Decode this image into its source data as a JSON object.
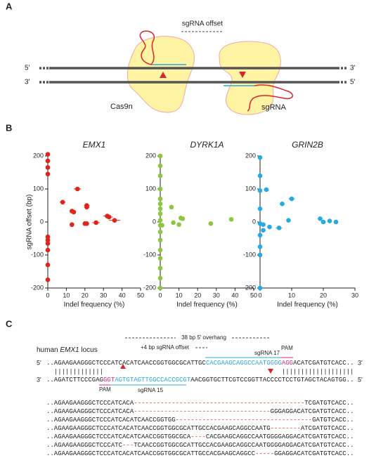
{
  "panel_labels": [
    "A",
    "B",
    "C"
  ],
  "panel_a": {
    "offset_label": "sgRNA offset",
    "top_left": "5'",
    "top_right": "3'",
    "bottom_left": "3'",
    "bottom_right": "5'",
    "cas9_label": "Cas9n",
    "sgrna_label": "sgRNA"
  },
  "chart_data": [
    {
      "type": "scatter",
      "title": "EMX1",
      "xlabel": "Indel frequency (%)",
      "ylabel": "sgRNA offset (bp)",
      "color": "#e2231a",
      "x": [
        0,
        0,
        0,
        0,
        0,
        0,
        0,
        0,
        0,
        0,
        8,
        16,
        13,
        14,
        13,
        21,
        21,
        20,
        21,
        26,
        32,
        33,
        36
      ],
      "values": [
        205,
        185,
        165,
        145,
        -45,
        -55,
        -65,
        -85,
        -130,
        -175,
        60,
        100,
        33,
        30,
        -8,
        45,
        50,
        -5,
        -5,
        -2,
        18,
        15,
        5
      ],
      "xerr": [
        0,
        0,
        0,
        0,
        0,
        0,
        0,
        0,
        0,
        0,
        1.5,
        2,
        1,
        1,
        0.5,
        1.5,
        1.5,
        1,
        1,
        2,
        2,
        2,
        3
      ],
      "xlim": [
        0,
        50
      ],
      "ylim": [
        -200,
        200
      ],
      "xticks": [
        0,
        10,
        20,
        30,
        40,
        50
      ],
      "yticks": [
        -200,
        -100,
        0,
        100,
        200
      ]
    },
    {
      "type": "scatter",
      "title": "DYRK1A",
      "xlabel": "Indel frequency (%)",
      "color": "#8dc63f",
      "x": [
        0,
        0,
        0,
        0,
        0,
        0,
        0,
        0,
        0,
        0,
        0,
        0,
        0,
        0,
        0,
        0,
        0,
        1,
        6,
        7,
        10,
        11,
        12,
        27,
        38
      ],
      "values": [
        200,
        170,
        140,
        100,
        70,
        55,
        40,
        25,
        5,
        -10,
        -30,
        -55,
        -85,
        -110,
        -140,
        -170,
        -200,
        -10,
        45,
        -2,
        -8,
        12,
        10,
        -5,
        8
      ],
      "xerr": [
        0,
        0,
        0,
        0,
        0,
        0,
        0,
        0,
        0,
        0,
        0,
        0,
        0,
        0,
        0,
        0,
        0,
        0.5,
        0.5,
        0.5,
        1,
        1,
        1,
        0.5,
        0.5
      ],
      "xlim": [
        0,
        50
      ],
      "ylim": [
        -200,
        200
      ],
      "xticks": [
        0,
        10,
        20,
        30,
        40,
        50
      ],
      "yticks": [
        -200,
        -100,
        0,
        100,
        200
      ]
    },
    {
      "type": "scatter",
      "title": "GRIN2B",
      "xlabel": "Indel frequency (%)",
      "color": "#27aae1",
      "x": [
        0,
        0,
        0,
        0,
        0,
        0,
        0,
        0,
        0,
        1,
        1,
        2,
        3,
        6,
        7,
        9,
        10,
        19,
        20,
        22,
        24
      ],
      "values": [
        195,
        140,
        95,
        40,
        -5,
        -40,
        -75,
        -100,
        -200,
        -25,
        -8,
        98,
        -15,
        -18,
        55,
        5,
        70,
        10,
        0,
        3,
        0
      ],
      "xerr": [
        0,
        0,
        0,
        0,
        0,
        0,
        0,
        0,
        0,
        0.3,
        0.3,
        0.8,
        0.5,
        1,
        0.8,
        0.5,
        1,
        0.8,
        0.8,
        0.5,
        0.5
      ],
      "xlim": [
        0,
        30
      ],
      "ylim": [
        -200,
        200
      ],
      "xticks": [
        0,
        10,
        20,
        30
      ],
      "yticks": [
        -200,
        -100,
        0,
        100,
        200
      ]
    }
  ],
  "panel_c": {
    "overhang": "38 bp 5' overhang",
    "locus_prefix": "human ",
    "locus_gene": "EMX1",
    "locus_suffix": " locus",
    "offset": "+4 bp sgRNA offset",
    "sgrna_top": "sgRNA 17",
    "pam_top": "PAM",
    "pam_bottom": "PAM",
    "sgrna_bottom": "sgRNA 15",
    "top_left": "5'",
    "top_right": "3'",
    "bottom_left": "3'",
    "bottom_right": "5'",
    "top_strand": [
      {
        "text": "..AGAAGAAGGGCTCCCATCACATCAACCGGTGGCGCATTGC"
      },
      {
        "text": "CACGAAGCAGGCCAATGGGG",
        "color": "#27aae1"
      },
      {
        "text": "AGG",
        "color": "#e0218a"
      },
      {
        "text": "ACATCGATGTCACC.."
      }
    ],
    "pairs": [
      "|||||||||||||",
      "|||||||||||||||||||"
    ],
    "bottom_strand": [
      {
        "text": "..AGATCTTCCCGAG"
      },
      {
        "text": "GGT",
        "color": "#e0218a"
      },
      {
        "text": "AGTGTAGTTGGCCACCGCGT",
        "color": "#27aae1"
      },
      {
        "text": "AACGGTGCTTCGTCCGGTTACCCCTCCTGTAGCTACAGTGG.."
      }
    ],
    "alleles": [
      [
        {
          "text": "..AGAAGAAGGGCTCCCATCACA"
        },
        {
          "text": "---------------------------------------------",
          "color": "#e2231a"
        },
        {
          "text": "TCGATGTCACC.."
        }
      ],
      [
        {
          "text": "..AGAAGAAGGGCTCCCATCACA"
        },
        {
          "text": "------------------------------------",
          "color": "#e2231a"
        },
        {
          "text": "GGGAGGACATCGATGTCACC.."
        }
      ],
      [
        {
          "text": "..AGAAGAAGGGCTCCCATCACATCAACCGGTGG"
        },
        {
          "text": "------------------------------------",
          "color": "#e2231a"
        },
        {
          "text": "GATGTCACC.."
        }
      ],
      [
        {
          "text": "..AGAAGAAGGGCTCCCATCACATCAACCGGTGGCGCATTGCCACGAAGCAGGCCAATG"
        },
        {
          "text": "--------",
          "color": "#e2231a"
        },
        {
          "text": "ATCGATGTCACC.."
        }
      ],
      [
        {
          "text": "..AGAAGAAGGGCTCCCATCACATCAACCGGTGGCGCA"
        },
        {
          "text": "----",
          "color": "#e2231a"
        },
        {
          "text": "CACGAAGCAGGCCAATGGGGAGGACATCGATGTCACC.."
        }
      ],
      [
        {
          "text": "..AGAAGAAGGGCTCCCATC"
        },
        {
          "text": "---",
          "color": "#e2231a"
        },
        {
          "text": "TCAACCGGTGGCGCATTGCCACGAAGCAGGCCAATGGGGAGGACATCGATGTCACC.."
        }
      ],
      [
        {
          "text": "..AGAAGAAGGGCTCCCATCACATCAACCGGTGGCGCATTGCCACGAAGCAGGCC"
        },
        {
          "text": "-----",
          "color": "#e2231a"
        },
        {
          "text": "GGAGGACATCGATGTCACC.."
        }
      ]
    ]
  }
}
